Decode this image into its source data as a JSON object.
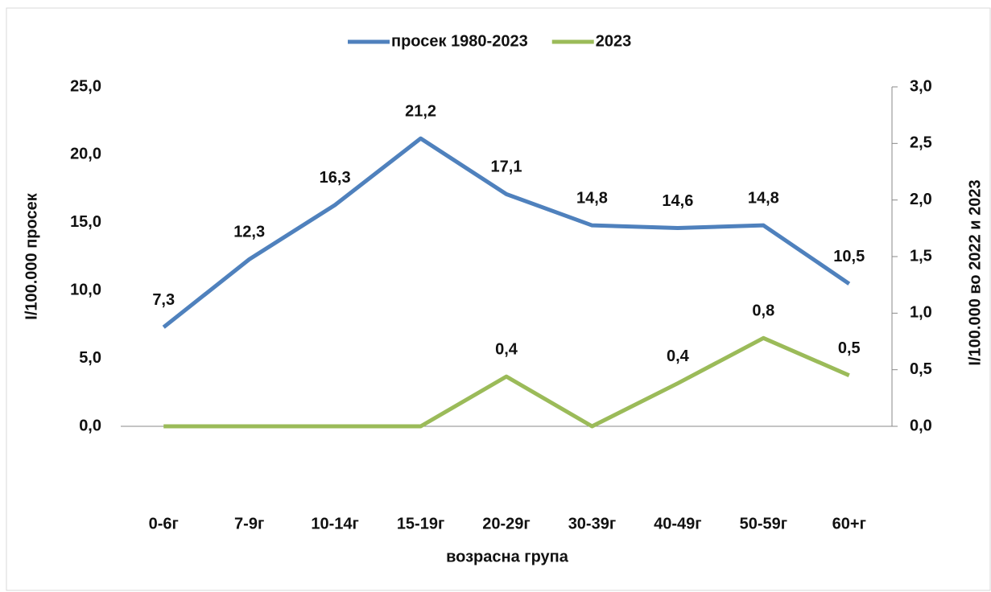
{
  "chart_data": {
    "type": "line",
    "xlabel": "возрасна група",
    "ylabel": "I/100.000 просек",
    "y2label": "I/100.000 во 2022 и 2023",
    "categories": [
      "0-6г",
      "7-9г",
      "10-14г",
      "15-19г",
      "20-29г",
      "30-39г",
      "40-49г",
      "50-59г",
      "60+г"
    ],
    "series": [
      {
        "name": "просек 1980-2023",
        "color": "#4f81bd",
        "values": [
          7.3,
          12.3,
          16.3,
          21.2,
          17.1,
          14.8,
          14.6,
          14.8,
          10.5
        ],
        "value_labels": [
          "7,3",
          "12,3",
          "16,3",
          "21,2",
          "17,1",
          "14,8",
          "14,6",
          "14,8",
          "10,5"
        ]
      },
      {
        "name": "2023",
        "color": "#9bbb59",
        "axis": "y2",
        "values": [
          0,
          0,
          0,
          0,
          0.44,
          0,
          0.38,
          0.78,
          0.45
        ],
        "value_labels": [
          null,
          null,
          null,
          null,
          "0,4",
          null,
          "0,4",
          "0,8",
          "0,5"
        ]
      }
    ],
    "ylim": [
      0,
      25
    ],
    "yticks": [
      {
        "value": 0,
        "label": "0,0"
      },
      {
        "value": 5,
        "label": "5,0"
      },
      {
        "value": 10,
        "label": "10,0"
      },
      {
        "value": 15,
        "label": "15,0"
      },
      {
        "value": 20,
        "label": "20,0"
      },
      {
        "value": 25,
        "label": "25,0"
      }
    ],
    "y2lim": [
      0,
      3
    ],
    "y2ticks": [
      {
        "value": 0,
        "label": "0,0"
      },
      {
        "value": 0.5,
        "label": "0,5"
      },
      {
        "value": 1,
        "label": "1,0"
      },
      {
        "value": 1.5,
        "label": "1,5"
      },
      {
        "value": 2,
        "label": "2,0"
      },
      {
        "value": 2.5,
        "label": "2,5"
      },
      {
        "value": 3,
        "label": "3,0"
      }
    ],
    "legend": "top"
  }
}
